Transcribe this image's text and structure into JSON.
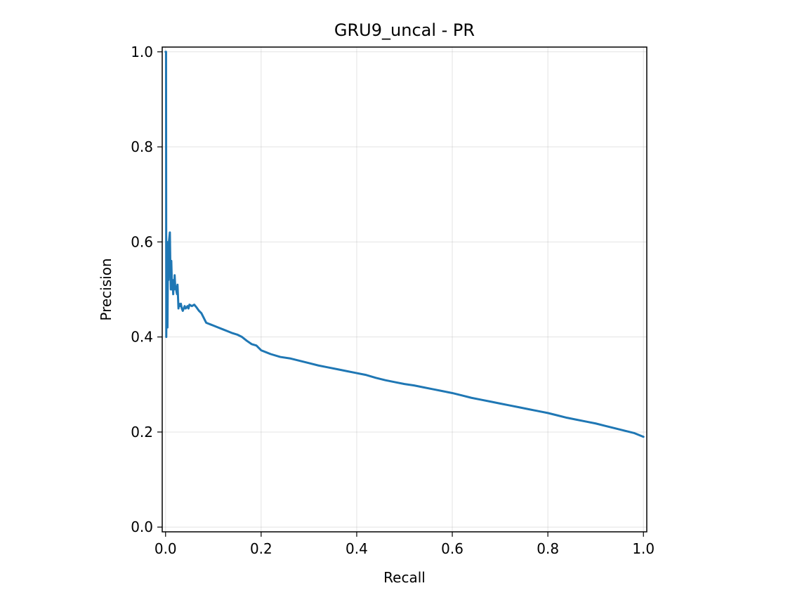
{
  "chart_data": {
    "type": "line",
    "title": "GRU9_uncal - PR",
    "xlabel": "Recall",
    "ylabel": "Precision",
    "xlim": [
      -0.007,
      1.007
    ],
    "ylim": [
      -0.01,
      1.01
    ],
    "xticks": [
      0.0,
      0.2,
      0.4,
      0.6,
      0.8,
      1.0
    ],
    "yticks": [
      0.0,
      0.2,
      0.4,
      0.6,
      0.8,
      1.0
    ],
    "xtick_labels": [
      "0.0",
      "0.2",
      "0.4",
      "0.6",
      "0.8",
      "1.0"
    ],
    "ytick_labels": [
      "0.0",
      "0.2",
      "0.4",
      "0.6",
      "0.8",
      "1.0"
    ],
    "grid": true,
    "series": [
      {
        "color": "#1f77b4",
        "x": [
          0.0,
          0.001,
          0.0015,
          0.002,
          0.0025,
          0.003,
          0.004,
          0.005,
          0.006,
          0.007,
          0.008,
          0.009,
          0.01,
          0.011,
          0.012,
          0.013,
          0.014,
          0.015,
          0.016,
          0.017,
          0.018,
          0.019,
          0.02,
          0.022,
          0.024,
          0.025,
          0.027,
          0.028,
          0.03,
          0.032,
          0.034,
          0.036,
          0.038,
          0.04,
          0.042,
          0.044,
          0.046,
          0.048,
          0.05,
          0.055,
          0.06,
          0.065,
          0.07,
          0.075,
          0.08,
          0.085,
          0.09,
          0.095,
          0.1,
          0.11,
          0.12,
          0.13,
          0.14,
          0.15,
          0.16,
          0.17,
          0.18,
          0.19,
          0.2,
          0.22,
          0.24,
          0.26,
          0.28,
          0.3,
          0.32,
          0.34,
          0.36,
          0.38,
          0.4,
          0.42,
          0.44,
          0.46,
          0.48,
          0.5,
          0.52,
          0.54,
          0.56,
          0.58,
          0.6,
          0.62,
          0.64,
          0.66,
          0.68,
          0.7,
          0.72,
          0.74,
          0.76,
          0.78,
          0.8,
          0.82,
          0.84,
          0.86,
          0.88,
          0.9,
          0.92,
          0.94,
          0.96,
          0.98,
          1.0
        ],
        "y": [
          1.0,
          1.0,
          0.4,
          0.5,
          0.44,
          0.6,
          0.42,
          0.58,
          0.52,
          0.6,
          0.61,
          0.62,
          0.55,
          0.5,
          0.56,
          0.52,
          0.5,
          0.51,
          0.49,
          0.52,
          0.5,
          0.53,
          0.51,
          0.5,
          0.49,
          0.51,
          0.46,
          0.47,
          0.465,
          0.47,
          0.46,
          0.455,
          0.46,
          0.465,
          0.46,
          0.462,
          0.465,
          0.46,
          0.468,
          0.465,
          0.468,
          0.462,
          0.455,
          0.45,
          0.44,
          0.43,
          0.428,
          0.426,
          0.424,
          0.42,
          0.416,
          0.412,
          0.408,
          0.405,
          0.4,
          0.392,
          0.385,
          0.382,
          0.372,
          0.364,
          0.358,
          0.355,
          0.35,
          0.345,
          0.34,
          0.336,
          0.332,
          0.328,
          0.324,
          0.32,
          0.314,
          0.309,
          0.305,
          0.301,
          0.298,
          0.294,
          0.29,
          0.286,
          0.282,
          0.277,
          0.272,
          0.268,
          0.264,
          0.26,
          0.256,
          0.252,
          0.248,
          0.244,
          0.24,
          0.235,
          0.23,
          0.226,
          0.222,
          0.218,
          0.213,
          0.208,
          0.203,
          0.198,
          0.19
        ]
      }
    ]
  }
}
